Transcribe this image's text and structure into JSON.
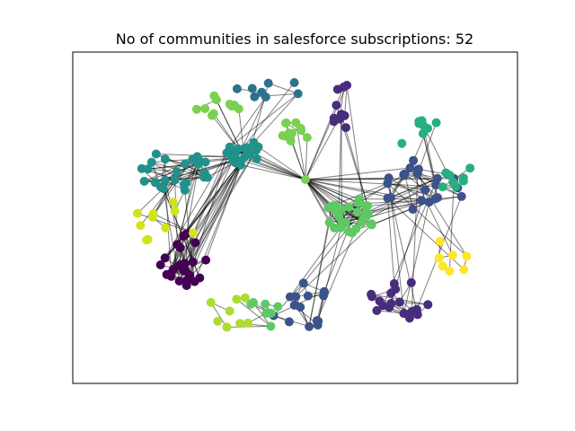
{
  "title": "No of communities in salesforce subscriptions: 52",
  "colors": {
    "palette": "viridis",
    "edge": "#000000",
    "frame": "#000000",
    "background": "#ffffff"
  },
  "chart_data": {
    "type": "network",
    "title": "No of communities in salesforce subscriptions: 52",
    "community_count": 52,
    "colormap": "viridis",
    "axes_ticks": false
  }
}
